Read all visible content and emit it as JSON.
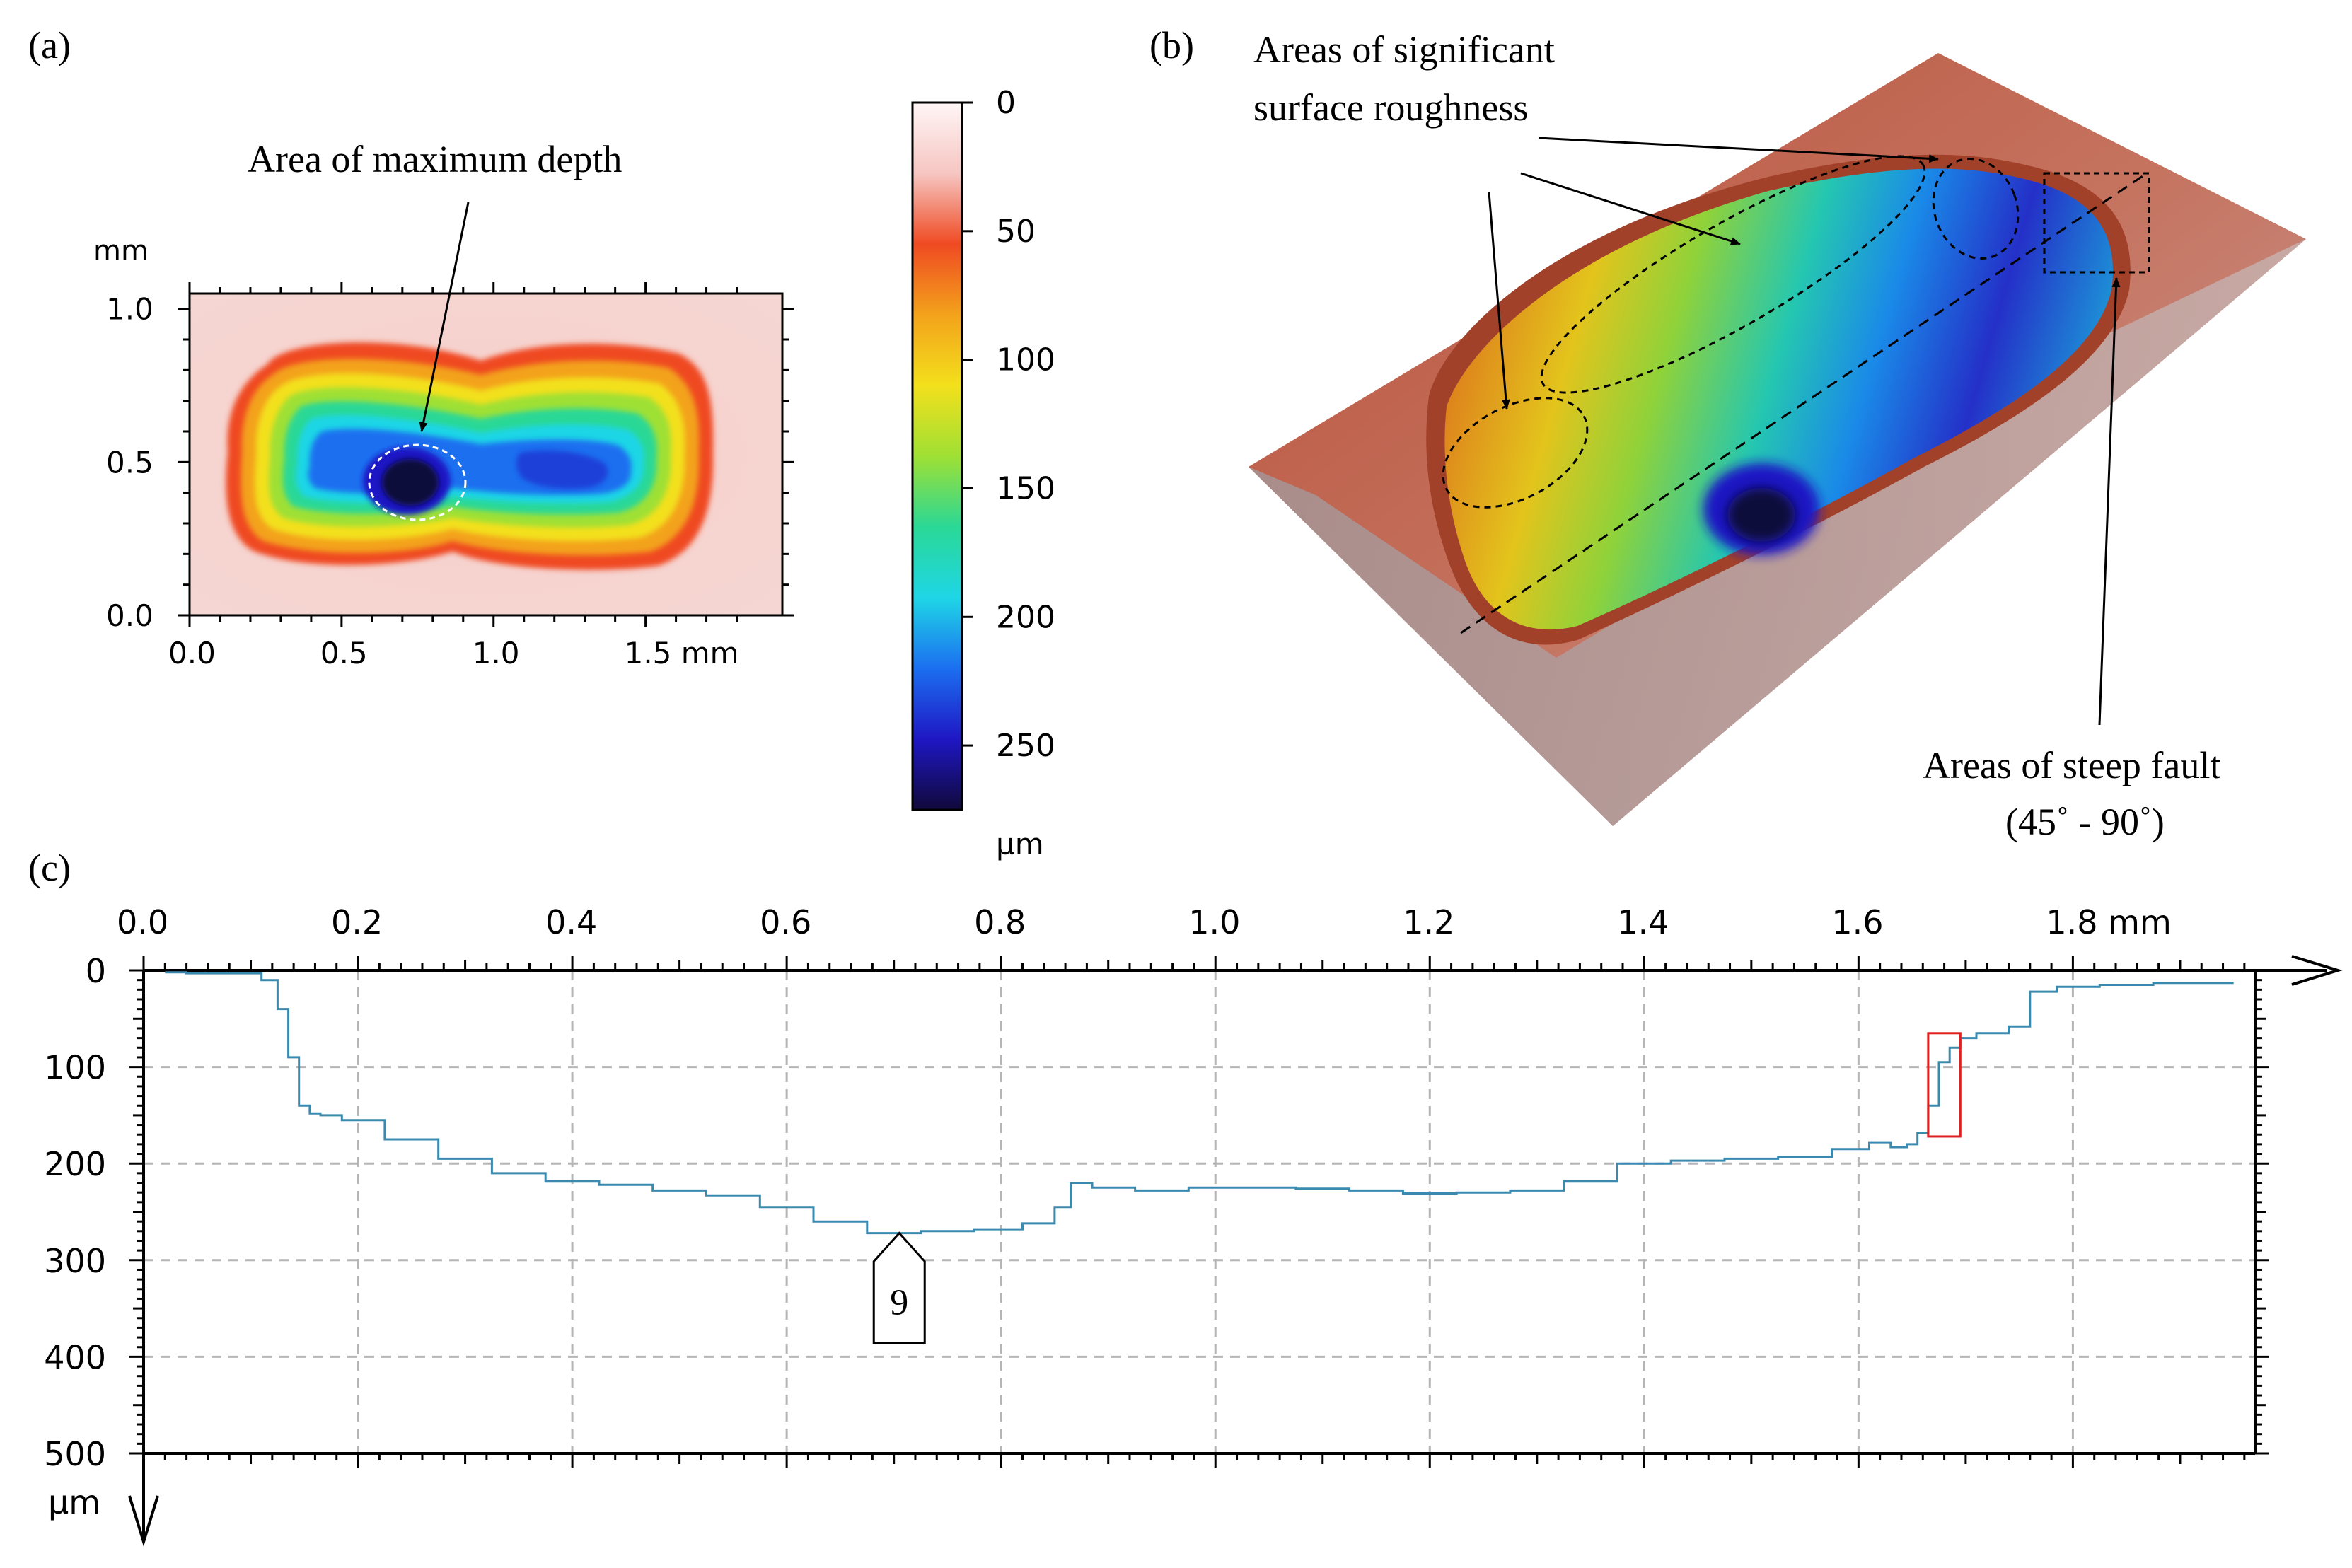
{
  "panels": {
    "a": {
      "label": "(a)",
      "y_unit": "mm",
      "x_unit": "mm",
      "x_ticks": [
        "0.0",
        "0.5",
        "1.0",
        "1.5 mm"
      ],
      "y_ticks": [
        "1.0",
        "0.5",
        "0.0"
      ],
      "annotation": "Area of maximum depth"
    },
    "b": {
      "label": "(b)",
      "annotation_roughness": [
        "Areas of significant",
        "surface roughness"
      ],
      "annotation_fault": [
        "Areas of steep fault",
        "(45˚ - 90˚)"
      ]
    },
    "c": {
      "label": "(c)",
      "marker_label": "9"
    }
  },
  "colorbar": {
    "ticks": [
      "0",
      "50",
      "100",
      "150",
      "200",
      "250"
    ],
    "unit": "µm",
    "stops": [
      "#fff6f6",
      "#f6c6c2",
      "#ef4a22",
      "#f3a21b",
      "#f3e01c",
      "#9fe034",
      "#2ad896",
      "#1fd6e6",
      "#1b6ff0",
      "#1f17c4",
      "#10093a"
    ]
  },
  "chart_data": [
    {
      "type": "heatmap",
      "title": "",
      "xlabel": "mm",
      "ylabel": "mm",
      "xlim": [
        0.0,
        1.95
      ],
      "ylim": [
        0.0,
        1.05
      ],
      "x_ticks": [
        0.0,
        0.5,
        1.0,
        1.5
      ],
      "y_ticks": [
        0.0,
        0.5,
        1.0
      ],
      "value_unit": "µm",
      "value_range": [
        0,
        275
      ],
      "max_depth_location": [
        0.73,
        0.44
      ]
    },
    {
      "type": "line",
      "title": "",
      "xlabel": "mm",
      "ylabel": "µm",
      "xlim": [
        0.0,
        1.95
      ],
      "ylim": [
        500,
        0
      ],
      "x_ticks": [
        "0.0",
        "0.2",
        "0.4",
        "0.6",
        "0.8",
        "1.0",
        "1.2",
        "1.4",
        "1.6",
        "1.8 mm"
      ],
      "y_ticks": [
        "0",
        "100",
        "200",
        "300",
        "400",
        "500"
      ],
      "y_unit": "µm",
      "grid": true,
      "color": "#3a8ab0",
      "x": [
        0.02,
        0.06,
        0.1,
        0.12,
        0.13,
        0.14,
        0.15,
        0.16,
        0.17,
        0.2,
        0.25,
        0.3,
        0.35,
        0.4,
        0.45,
        0.5,
        0.55,
        0.6,
        0.65,
        0.7,
        0.75,
        0.8,
        0.84,
        0.86,
        0.87,
        0.9,
        0.95,
        1.0,
        1.05,
        1.1,
        1.15,
        1.2,
        1.25,
        1.3,
        1.35,
        1.4,
        1.45,
        1.5,
        1.55,
        1.6,
        1.62,
        1.64,
        1.65,
        1.66,
        1.67,
        1.68,
        1.69,
        1.7,
        1.72,
        1.73,
        1.75,
        1.77,
        1.8,
        1.85,
        1.9,
        1.95
      ],
      "y": [
        2,
        3,
        3,
        10,
        40,
        90,
        140,
        148,
        150,
        155,
        175,
        195,
        210,
        218,
        222,
        228,
        233,
        245,
        260,
        272,
        270,
        268,
        262,
        245,
        220,
        225,
        228,
        225,
        225,
        226,
        228,
        231,
        230,
        228,
        218,
        200,
        197,
        195,
        193,
        185,
        178,
        183,
        180,
        168,
        140,
        95,
        80,
        70,
        65,
        65,
        58,
        22,
        17,
        15,
        13,
        13
      ],
      "marker": {
        "label": "9",
        "x": 0.705,
        "y": 272
      },
      "highlight": {
        "x": [
          1.665,
          1.695
        ],
        "y": [
          65,
          172
        ]
      }
    }
  ]
}
